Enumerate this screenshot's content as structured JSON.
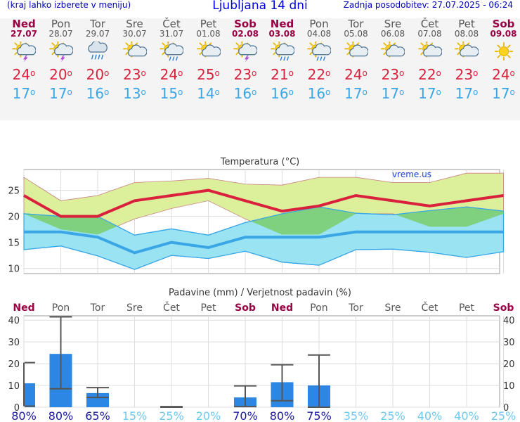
{
  "header": {
    "menu_hint": "(kraj lahko izberete v meniju)",
    "title": "Ljubljana 14 dni",
    "updated": "Zadnja posodobitev: 27.07.2025 - 06:24"
  },
  "days": [
    {
      "name": "Ned",
      "date": "27.07",
      "weekend": true,
      "icon": "sun-cloud-thunder-icon",
      "tmax": "24",
      "tmin": "17"
    },
    {
      "name": "Pon",
      "date": "28.07",
      "weekend": false,
      "icon": "sun-cloud-thunder-icon",
      "tmax": "20",
      "tmin": "17"
    },
    {
      "name": "Tor",
      "date": "29.07",
      "weekend": false,
      "icon": "cloud-rain-icon",
      "tmax": "20",
      "tmin": "16"
    },
    {
      "name": "Sre",
      "date": "30.07",
      "weekend": false,
      "icon": "sun-cloud-icon",
      "tmax": "23",
      "tmin": "13"
    },
    {
      "name": "Čet",
      "date": "31.07",
      "weekend": false,
      "icon": "sun-cloud-rain-icon",
      "tmax": "24",
      "tmin": "15"
    },
    {
      "name": "Pet",
      "date": "01.08",
      "weekend": false,
      "icon": "sun-cloud-icon",
      "tmax": "25",
      "tmin": "14"
    },
    {
      "name": "Sob",
      "date": "02.08",
      "weekend": true,
      "icon": "sun-cloud-thunder-icon",
      "tmax": "23",
      "tmin": "16"
    },
    {
      "name": "Ned",
      "date": "03.08",
      "weekend": true,
      "icon": "sun-cloud-rain-icon",
      "tmax": "21",
      "tmin": "16"
    },
    {
      "name": "Pon",
      "date": "04.08",
      "weekend": false,
      "icon": "sun-cloud-rain-icon",
      "tmax": "22",
      "tmin": "16"
    },
    {
      "name": "Tor",
      "date": "05.08",
      "weekend": false,
      "icon": "sun-cloud-icon",
      "tmax": "24",
      "tmin": "17"
    },
    {
      "name": "Sre",
      "date": "06.08",
      "weekend": false,
      "icon": "sun-cloud-icon",
      "tmax": "23",
      "tmin": "17"
    },
    {
      "name": "Čet",
      "date": "07.08",
      "weekend": false,
      "icon": "sun-cloud-icon",
      "tmax": "22",
      "tmin": "17"
    },
    {
      "name": "Pet",
      "date": "08.08",
      "weekend": false,
      "icon": "sun-cloud-icon",
      "tmax": "23",
      "tmin": "17"
    },
    {
      "name": "Sob",
      "date": "09.08",
      "weekend": true,
      "icon": "sun-icon",
      "tmax": "24",
      "tmin": "17"
    }
  ],
  "colors": {
    "tmax": "#d9213d",
    "tmin": "#3aa6e6",
    "max_band": "#dcef9a",
    "min_band": "#99e3f3",
    "overlap": "#7fd07f",
    "precip_bar": "#2b87e3",
    "weekend": "#990044"
  },
  "chart_data": [
    {
      "type": "area",
      "title": "Temperatura (°C)",
      "credit": "vreme.us",
      "categories": [
        "Ned",
        "Pon",
        "Tor",
        "Sre",
        "Čet",
        "Pet",
        "Sob",
        "Ned",
        "Pon",
        "Tor",
        "Sre",
        "Čet",
        "Pet",
        "Sob"
      ],
      "ylim": [
        9,
        29
      ],
      "yticks": [
        10,
        15,
        20,
        25
      ],
      "grid": true,
      "series": [
        {
          "name": "tmax",
          "values": [
            24,
            20,
            20,
            23,
            24,
            25,
            23,
            21,
            22,
            24,
            23,
            22,
            23,
            24
          ]
        },
        {
          "name": "tmin",
          "values": [
            17,
            17,
            16,
            13,
            15,
            14,
            16,
            16,
            16,
            17,
            17,
            17,
            17,
            17
          ]
        },
        {
          "name": "tmax_upper",
          "values": [
            27.5,
            23,
            24,
            26.5,
            26.8,
            27.3,
            26.2,
            26,
            27.5,
            27.5,
            26.5,
            26.5,
            28.3,
            28.3
          ]
        },
        {
          "name": "tmax_lower",
          "values": [
            20.5,
            17.5,
            16.5,
            19.5,
            21.5,
            23,
            19.5,
            16.5,
            16.5,
            20.5,
            20.5,
            18,
            18,
            20.5
          ]
        },
        {
          "name": "tmin_upper",
          "values": [
            20.5,
            20,
            20,
            16.4,
            17.6,
            16.4,
            18.8,
            20.5,
            21.8,
            20.6,
            20.3,
            21.1,
            21.8,
            21
          ]
        },
        {
          "name": "tmin_lower",
          "values": [
            13.6,
            14.3,
            12.4,
            9.8,
            12.5,
            11.9,
            13.3,
            11.2,
            10.6,
            13.6,
            13.7,
            13.1,
            12.1,
            13.2
          ]
        }
      ]
    },
    {
      "type": "bar",
      "title": "Padavine (mm) / Verjetnost padavin (%)",
      "categories": [
        "Ned",
        "Pon",
        "Tor",
        "Sre",
        "Čet",
        "Pet",
        "Sob",
        "Ned",
        "Pon",
        "Tor",
        "Sre",
        "Čet",
        "Pet",
        "Sob"
      ],
      "ylim": [
        0,
        42
      ],
      "yticks": [
        0,
        10,
        20,
        30,
        40
      ],
      "grid": true,
      "values": [
        11,
        24.5,
        6.5,
        0,
        0.2,
        0,
        4.5,
        11.5,
        10,
        0,
        0,
        0,
        0,
        0
      ],
      "err_low": [
        0.5,
        8.5,
        4.5,
        null,
        0,
        null,
        0.3,
        3,
        0,
        null,
        null,
        null,
        null,
        null
      ],
      "err_high": [
        20.5,
        41.5,
        9,
        null,
        0.3,
        null,
        9.8,
        19.5,
        24,
        null,
        null,
        null,
        null,
        null
      ],
      "probability": [
        "80%",
        "80%",
        "65%",
        "15%",
        "25%",
        "20%",
        "70%",
        "80%",
        "75%",
        "35%",
        "25%",
        "40%",
        "40%",
        "25%"
      ],
      "probability_levels": [
        "high",
        "high",
        "high",
        "low",
        "low",
        "low",
        "high",
        "high",
        "high",
        "low",
        "low",
        "low",
        "low",
        "low"
      ]
    }
  ]
}
